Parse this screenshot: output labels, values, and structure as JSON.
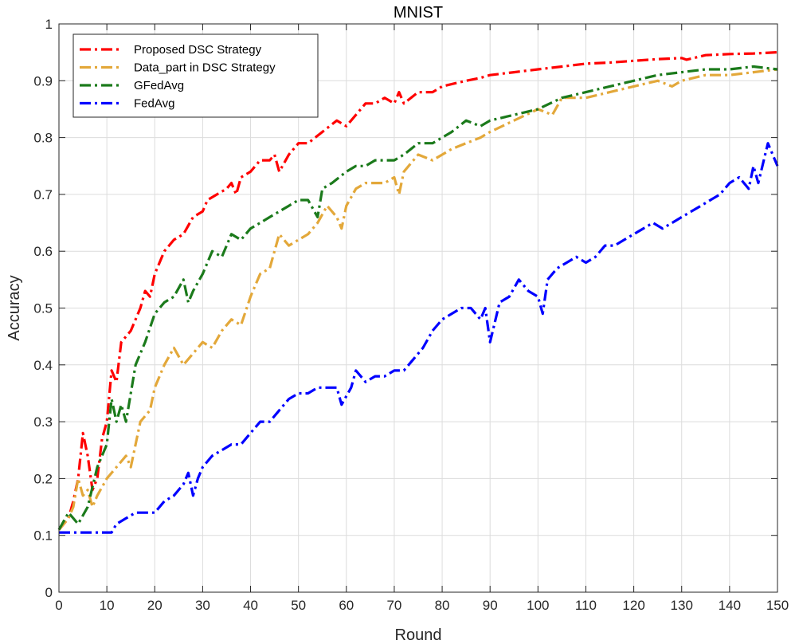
{
  "chart_data": {
    "type": "line",
    "title": "MNIST",
    "xlabel": "Round",
    "ylabel": "Accuracy",
    "xlim": [
      0,
      150
    ],
    "ylim": [
      0,
      1
    ],
    "xticks": [
      "0",
      "10",
      "20",
      "30",
      "40",
      "50",
      "60",
      "70",
      "80",
      "90",
      "100",
      "110",
      "120",
      "130",
      "140",
      "150"
    ],
    "yticks": [
      "0",
      "0.1",
      "0.2",
      "0.3",
      "0.4",
      "0.5",
      "0.6",
      "0.7",
      "0.8",
      "0.9",
      "1"
    ],
    "grid": true,
    "legend_position": "top-left",
    "series": [
      {
        "name": "Proposed DSC Strategy",
        "color": "#ff0000",
        "points": [
          [
            0,
            0.11
          ],
          [
            2,
            0.13
          ],
          [
            3,
            0.16
          ],
          [
            4,
            0.2
          ],
          [
            5,
            0.28
          ],
          [
            6,
            0.24
          ],
          [
            7,
            0.18
          ],
          [
            8,
            0.2
          ],
          [
            9,
            0.27
          ],
          [
            10,
            0.3
          ],
          [
            11,
            0.39
          ],
          [
            12,
            0.37
          ],
          [
            13,
            0.44
          ],
          [
            15,
            0.46
          ],
          [
            17,
            0.5
          ],
          [
            18,
            0.53
          ],
          [
            19,
            0.52
          ],
          [
            20,
            0.56
          ],
          [
            22,
            0.6
          ],
          [
            24,
            0.62
          ],
          [
            26,
            0.63
          ],
          [
            28,
            0.66
          ],
          [
            30,
            0.67
          ],
          [
            31,
            0.69
          ],
          [
            33,
            0.7
          ],
          [
            35,
            0.71
          ],
          [
            36,
            0.72
          ],
          [
            37,
            0.7
          ],
          [
            38,
            0.73
          ],
          [
            40,
            0.74
          ],
          [
            42,
            0.76
          ],
          [
            44,
            0.76
          ],
          [
            45,
            0.77
          ],
          [
            46,
            0.74
          ],
          [
            48,
            0.77
          ],
          [
            50,
            0.79
          ],
          [
            52,
            0.79
          ],
          [
            55,
            0.81
          ],
          [
            58,
            0.83
          ],
          [
            60,
            0.82
          ],
          [
            62,
            0.84
          ],
          [
            64,
            0.86
          ],
          [
            66,
            0.86
          ],
          [
            68,
            0.87
          ],
          [
            70,
            0.86
          ],
          [
            71,
            0.88
          ],
          [
            72,
            0.86
          ],
          [
            75,
            0.88
          ],
          [
            78,
            0.88
          ],
          [
            80,
            0.89
          ],
          [
            85,
            0.9
          ],
          [
            88,
            0.905
          ],
          [
            90,
            0.91
          ],
          [
            95,
            0.915
          ],
          [
            100,
            0.92
          ],
          [
            105,
            0.925
          ],
          [
            110,
            0.93
          ],
          [
            115,
            0.932
          ],
          [
            120,
            0.935
          ],
          [
            125,
            0.938
          ],
          [
            130,
            0.94
          ],
          [
            131,
            0.937
          ],
          [
            135,
            0.945
          ],
          [
            140,
            0.947
          ],
          [
            145,
            0.948
          ],
          [
            150,
            0.95
          ]
        ]
      },
      {
        "name": "Data_part in DSC Strategy",
        "color": "#e3a83a",
        "points": [
          [
            0,
            0.11
          ],
          [
            2,
            0.13
          ],
          [
            3,
            0.15
          ],
          [
            4,
            0.2
          ],
          [
            5,
            0.17
          ],
          [
            6,
            0.18
          ],
          [
            7,
            0.15
          ],
          [
            8,
            0.17
          ],
          [
            10,
            0.2
          ],
          [
            12,
            0.22
          ],
          [
            14,
            0.24
          ],
          [
            15,
            0.22
          ],
          [
            17,
            0.3
          ],
          [
            19,
            0.32
          ],
          [
            20,
            0.36
          ],
          [
            22,
            0.4
          ],
          [
            24,
            0.43
          ],
          [
            26,
            0.4
          ],
          [
            28,
            0.42
          ],
          [
            30,
            0.44
          ],
          [
            32,
            0.43
          ],
          [
            34,
            0.46
          ],
          [
            36,
            0.48
          ],
          [
            38,
            0.47
          ],
          [
            40,
            0.52
          ],
          [
            42,
            0.56
          ],
          [
            44,
            0.57
          ],
          [
            46,
            0.63
          ],
          [
            48,
            0.61
          ],
          [
            50,
            0.62
          ],
          [
            52,
            0.63
          ],
          [
            54,
            0.65
          ],
          [
            56,
            0.68
          ],
          [
            58,
            0.66
          ],
          [
            59,
            0.64
          ],
          [
            60,
            0.68
          ],
          [
            62,
            0.71
          ],
          [
            64,
            0.72
          ],
          [
            66,
            0.72
          ],
          [
            68,
            0.72
          ],
          [
            70,
            0.73
          ],
          [
            71,
            0.7
          ],
          [
            72,
            0.74
          ],
          [
            75,
            0.77
          ],
          [
            78,
            0.76
          ],
          [
            80,
            0.77
          ],
          [
            82,
            0.78
          ],
          [
            85,
            0.79
          ],
          [
            88,
            0.8
          ],
          [
            90,
            0.81
          ],
          [
            95,
            0.83
          ],
          [
            100,
            0.85
          ],
          [
            103,
            0.84
          ],
          [
            105,
            0.87
          ],
          [
            110,
            0.87
          ],
          [
            115,
            0.88
          ],
          [
            120,
            0.89
          ],
          [
            125,
            0.9
          ],
          [
            128,
            0.89
          ],
          [
            130,
            0.9
          ],
          [
            135,
            0.91
          ],
          [
            140,
            0.91
          ],
          [
            145,
            0.915
          ],
          [
            150,
            0.92
          ]
        ]
      },
      {
        "name": "GFedAvg",
        "color": "#1b7a1b",
        "points": [
          [
            0,
            0.11
          ],
          [
            2,
            0.14
          ],
          [
            4,
            0.12
          ],
          [
            6,
            0.15
          ],
          [
            8,
            0.22
          ],
          [
            10,
            0.26
          ],
          [
            11,
            0.34
          ],
          [
            12,
            0.3
          ],
          [
            13,
            0.33
          ],
          [
            14,
            0.3
          ],
          [
            16,
            0.4
          ],
          [
            18,
            0.44
          ],
          [
            20,
            0.49
          ],
          [
            22,
            0.51
          ],
          [
            24,
            0.52
          ],
          [
            26,
            0.55
          ],
          [
            27,
            0.51
          ],
          [
            28,
            0.53
          ],
          [
            30,
            0.56
          ],
          [
            32,
            0.6
          ],
          [
            34,
            0.59
          ],
          [
            36,
            0.63
          ],
          [
            38,
            0.62
          ],
          [
            40,
            0.64
          ],
          [
            42,
            0.65
          ],
          [
            44,
            0.66
          ],
          [
            46,
            0.67
          ],
          [
            48,
            0.68
          ],
          [
            50,
            0.69
          ],
          [
            52,
            0.69
          ],
          [
            54,
            0.66
          ],
          [
            55,
            0.71
          ],
          [
            57,
            0.72
          ],
          [
            60,
            0.74
          ],
          [
            62,
            0.75
          ],
          [
            64,
            0.75
          ],
          [
            66,
            0.76
          ],
          [
            68,
            0.76
          ],
          [
            70,
            0.76
          ],
          [
            72,
            0.77
          ],
          [
            75,
            0.79
          ],
          [
            78,
            0.79
          ],
          [
            80,
            0.8
          ],
          [
            82,
            0.81
          ],
          [
            85,
            0.83
          ],
          [
            88,
            0.82
          ],
          [
            90,
            0.83
          ],
          [
            95,
            0.84
          ],
          [
            100,
            0.85
          ],
          [
            105,
            0.87
          ],
          [
            110,
            0.88
          ],
          [
            115,
            0.89
          ],
          [
            120,
            0.9
          ],
          [
            125,
            0.91
          ],
          [
            130,
            0.915
          ],
          [
            135,
            0.92
          ],
          [
            140,
            0.92
          ],
          [
            145,
            0.925
          ],
          [
            150,
            0.92
          ]
        ]
      },
      {
        "name": "FedAvg",
        "color": "#0000ff",
        "points": [
          [
            0,
            0.105
          ],
          [
            3,
            0.105
          ],
          [
            6,
            0.105
          ],
          [
            9,
            0.105
          ],
          [
            11,
            0.105
          ],
          [
            12,
            0.12
          ],
          [
            14,
            0.13
          ],
          [
            16,
            0.14
          ],
          [
            18,
            0.14
          ],
          [
            20,
            0.14
          ],
          [
            22,
            0.16
          ],
          [
            24,
            0.17
          ],
          [
            26,
            0.19
          ],
          [
            27,
            0.21
          ],
          [
            28,
            0.17
          ],
          [
            29,
            0.2
          ],
          [
            30,
            0.22
          ],
          [
            32,
            0.24
          ],
          [
            34,
            0.25
          ],
          [
            36,
            0.26
          ],
          [
            38,
            0.26
          ],
          [
            40,
            0.28
          ],
          [
            42,
            0.3
          ],
          [
            44,
            0.3
          ],
          [
            46,
            0.32
          ],
          [
            48,
            0.34
          ],
          [
            50,
            0.35
          ],
          [
            52,
            0.35
          ],
          [
            54,
            0.36
          ],
          [
            56,
            0.36
          ],
          [
            58,
            0.36
          ],
          [
            59,
            0.33
          ],
          [
            61,
            0.36
          ],
          [
            62,
            0.39
          ],
          [
            64,
            0.37
          ],
          [
            66,
            0.38
          ],
          [
            68,
            0.38
          ],
          [
            70,
            0.39
          ],
          [
            72,
            0.39
          ],
          [
            74,
            0.41
          ],
          [
            76,
            0.43
          ],
          [
            78,
            0.46
          ],
          [
            80,
            0.48
          ],
          [
            82,
            0.49
          ],
          [
            84,
            0.5
          ],
          [
            86,
            0.5
          ],
          [
            88,
            0.48
          ],
          [
            89,
            0.5
          ],
          [
            90,
            0.44
          ],
          [
            92,
            0.51
          ],
          [
            94,
            0.52
          ],
          [
            96,
            0.55
          ],
          [
            98,
            0.53
          ],
          [
            100,
            0.52
          ],
          [
            101,
            0.49
          ],
          [
            102,
            0.55
          ],
          [
            104,
            0.57
          ],
          [
            106,
            0.58
          ],
          [
            108,
            0.59
          ],
          [
            110,
            0.58
          ],
          [
            112,
            0.59
          ],
          [
            114,
            0.61
          ],
          [
            116,
            0.61
          ],
          [
            118,
            0.62
          ],
          [
            120,
            0.63
          ],
          [
            122,
            0.64
          ],
          [
            124,
            0.65
          ],
          [
            126,
            0.64
          ],
          [
            128,
            0.65
          ],
          [
            130,
            0.66
          ],
          [
            132,
            0.67
          ],
          [
            134,
            0.68
          ],
          [
            136,
            0.69
          ],
          [
            138,
            0.7
          ],
          [
            140,
            0.72
          ],
          [
            142,
            0.73
          ],
          [
            144,
            0.71
          ],
          [
            145,
            0.75
          ],
          [
            146,
            0.72
          ],
          [
            148,
            0.79
          ],
          [
            149,
            0.77
          ],
          [
            150,
            0.75
          ]
        ]
      }
    ]
  }
}
